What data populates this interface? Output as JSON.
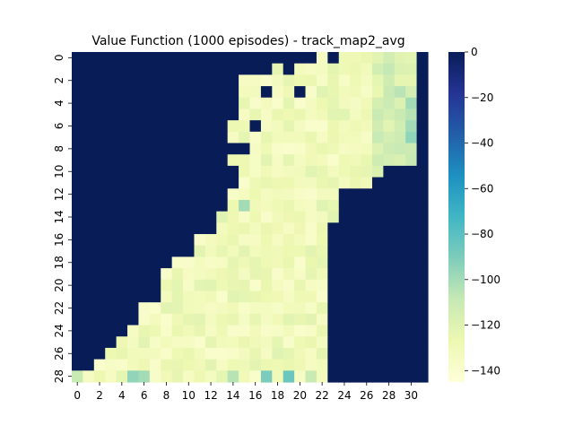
{
  "chart_data": {
    "type": "heatmap",
    "title": "Value Function (1000 episodes) - track_map2_avg",
    "xlabel": "",
    "ylabel": "",
    "n_rows": 29,
    "n_cols": 32,
    "x_tick_labels": [
      "0",
      "2",
      "4",
      "6",
      "8",
      "10",
      "12",
      "14",
      "16",
      "18",
      "20",
      "22",
      "24",
      "26",
      "28",
      "30"
    ],
    "y_tick_labels": [
      "0",
      "2",
      "4",
      "6",
      "8",
      "10",
      "12",
      "14",
      "16",
      "18",
      "20",
      "22",
      "24",
      "26",
      "28"
    ],
    "colorbar": {
      "min": -145,
      "max": 0,
      "tick_labels": [
        "0",
        "−20",
        "−40",
        "−60",
        "−80",
        "−100",
        "−120",
        "−140"
      ],
      "tick_values": [
        0,
        -20,
        -40,
        -60,
        -80,
        -100,
        -120,
        -140
      ],
      "colormap": "YlGnBu"
    },
    "wall_value": 0,
    "track_value_approx": -130,
    "track_start_col_by_row": [
      30,
      30,
      30,
      30,
      30,
      30,
      30,
      30,
      30,
      30,
      30,
      14,
      14,
      13,
      13,
      11,
      11,
      11,
      9,
      8,
      8,
      8,
      6,
      6,
      5,
      4,
      3,
      2,
      1
    ],
    "track_extents_by_row": [
      [
        [
          22,
          22
        ],
        [
          24,
          30
        ]
      ],
      [
        [
          18,
          18
        ],
        [
          20,
          30
        ]
      ],
      [
        [
          15,
          30
        ]
      ],
      [
        [
          15,
          30
        ]
      ],
      [
        [
          15,
          30
        ]
      ],
      [
        [
          15,
          30
        ]
      ],
      [
        [
          14,
          30
        ]
      ],
      [
        [
          14,
          30
        ]
      ],
      [
        [
          16,
          30
        ]
      ],
      [
        [
          14,
          30
        ]
      ],
      [
        [
          15,
          27
        ]
      ],
      [
        [
          15,
          26
        ]
      ],
      [
        [
          14,
          23
        ]
      ],
      [
        [
          14,
          23
        ]
      ],
      [
        [
          13,
          23
        ]
      ],
      [
        [
          13,
          22
        ]
      ],
      [
        [
          11,
          22
        ]
      ],
      [
        [
          11,
          22
        ]
      ],
      [
        [
          9,
          22
        ]
      ],
      [
        [
          8,
          22
        ]
      ],
      [
        [
          8,
          22
        ]
      ],
      [
        [
          8,
          22
        ]
      ],
      [
        [
          6,
          22
        ]
      ],
      [
        [
          6,
          22
        ]
      ],
      [
        [
          5,
          22
        ]
      ],
      [
        [
          4,
          22
        ]
      ],
      [
        [
          3,
          22
        ]
      ],
      [
        [
          2,
          22
        ]
      ],
      [
        [
          0,
          22
        ]
      ]
    ],
    "wall_holes": [
      [
        3,
        17
      ],
      [
        3,
        20
      ],
      [
        6,
        16
      ],
      [
        8,
        15
      ]
    ],
    "distinct_cells": [
      {
        "row": 4,
        "col": 30,
        "value": -100
      },
      {
        "row": 5,
        "col": 30,
        "value": -105
      },
      {
        "row": 6,
        "col": 30,
        "value": -100
      },
      {
        "row": 7,
        "col": 30,
        "value": -95
      },
      {
        "row": 13,
        "col": 15,
        "value": -100
      },
      {
        "row": 28,
        "col": 0,
        "value": -110
      },
      {
        "row": 28,
        "col": 5,
        "value": -95
      },
      {
        "row": 28,
        "col": 6,
        "value": -100
      },
      {
        "row": 28,
        "col": 14,
        "value": -105
      },
      {
        "row": 28,
        "col": 17,
        "value": -90
      },
      {
        "row": 28,
        "col": 19,
        "value": -85
      },
      {
        "row": 28,
        "col": 21,
        "value": -110
      }
    ]
  }
}
